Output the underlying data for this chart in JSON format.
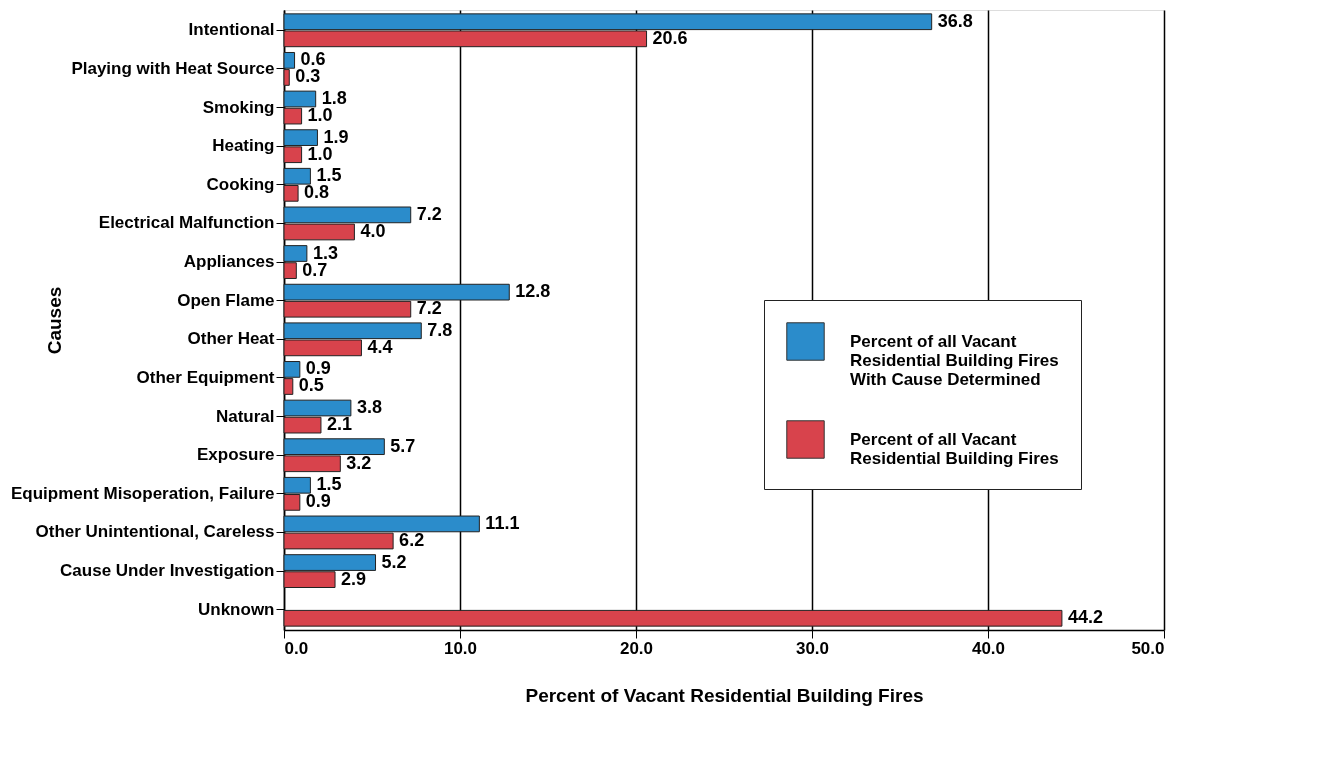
{
  "chart_data": {
    "type": "bar",
    "orientation": "horizontal",
    "xlabel": "Percent of Vacant Residential Building Fires",
    "ylabel": "Causes",
    "categories": [
      "Intentional",
      "Playing with Heat Source",
      "Smoking",
      "Heating",
      "Cooking",
      "Electrical Malfunction",
      "Appliances",
      "Open Flame",
      "Other Heat",
      "Other Equipment",
      "Natural",
      "Exposure",
      "Equipment Misoperation, Failure",
      "Other Unintentional, Careless",
      "Cause Under Investigation",
      "Unknown"
    ],
    "series": [
      {
        "name": "Percent of all Vacant Residential Building Fires With Cause Determined",
        "color": "#2b8ccb",
        "values": [
          36.8,
          0.6,
          1.8,
          1.9,
          1.5,
          7.2,
          1.3,
          12.8,
          7.8,
          0.9,
          3.8,
          5.7,
          1.5,
          11.1,
          5.2,
          null
        ],
        "value_labels": [
          "36.8",
          "0.6",
          "1.8",
          "1.9",
          "1.5",
          "7.2",
          "1.3",
          "12.8",
          "7.8",
          "0.9",
          "3.8",
          "5.7",
          "1.5",
          "11.1",
          "5.2",
          null
        ]
      },
      {
        "name": "Percent of all Vacant Residential Building Fires",
        "color": "#d8434c",
        "values": [
          20.6,
          0.3,
          1.0,
          1.0,
          0.8,
          4.0,
          0.7,
          7.2,
          4.4,
          0.5,
          2.1,
          3.2,
          0.9,
          6.2,
          2.9,
          44.2
        ],
        "value_labels": [
          "20.6",
          "0.3",
          "1.0",
          "1.0",
          "0.8",
          "4.0",
          "0.7",
          "7.2",
          "4.4",
          "0.5",
          "2.1",
          "3.2",
          "0.9",
          "6.2",
          "2.9",
          "44.2"
        ]
      }
    ],
    "xlim": [
      0,
      50
    ],
    "xticks": [
      {
        "value": 0,
        "label": "0.0"
      },
      {
        "value": 10,
        "label": "10.0"
      },
      {
        "value": 20,
        "label": "20.0"
      },
      {
        "value": 30,
        "label": "30.0"
      },
      {
        "value": 40,
        "label": "40.0"
      },
      {
        "value": 50,
        "label": "50.0"
      }
    ],
    "grid": "x",
    "legend": "right"
  }
}
